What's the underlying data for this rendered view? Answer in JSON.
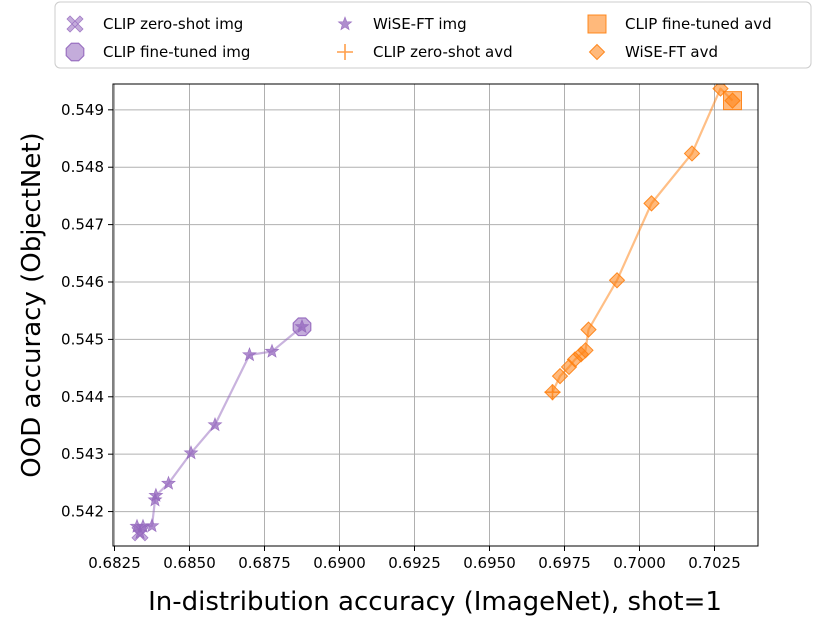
{
  "chart_data": {
    "type": "scatter",
    "title": "",
    "xlabel": "In-distribution accuracy (ImageNet), shot=1",
    "ylabel": "OOD accuracy (ObjectNet)",
    "xlim": [
      0.68245,
      0.70395
    ],
    "ylim": [
      0.5414,
      0.54945
    ],
    "xticks": [
      0.6825,
      0.685,
      0.6875,
      0.69,
      0.6925,
      0.695,
      0.6975,
      0.7,
      0.7025
    ],
    "xtick_labels": [
      "0.6825",
      "0.6850",
      "0.6875",
      "0.6900",
      "0.6925",
      "0.6950",
      "0.6975",
      "0.7000",
      "0.7025"
    ],
    "yticks": [
      0.542,
      0.543,
      0.544,
      0.545,
      0.546,
      0.547,
      0.548,
      0.549
    ],
    "ytick_labels": [
      "0.542",
      "0.543",
      "0.544",
      "0.545",
      "0.546",
      "0.547",
      "0.548",
      "0.549"
    ],
    "grid": true,
    "legend_position": "top",
    "colors": {
      "img": "#9467bd",
      "avd": "#ff7f0e"
    },
    "series": [
      {
        "name": "CLIP zero-shot img",
        "marker": "x-thick",
        "color": "#9467bd",
        "line": false,
        "points": [
          [
            0.68335,
            0.54163
          ]
        ]
      },
      {
        "name": "CLIP fine-tuned img",
        "marker": "octagon",
        "color": "#9467bd",
        "line": false,
        "points": [
          [
            0.68875,
            0.54522
          ]
        ]
      },
      {
        "name": "WiSE-FT img",
        "marker": "star",
        "color": "#9467bd",
        "line": true,
        "points": [
          [
            0.68335,
            0.54163
          ],
          [
            0.68325,
            0.54174
          ],
          [
            0.68345,
            0.54174
          ],
          [
            0.68375,
            0.54175
          ],
          [
            0.68385,
            0.5422
          ],
          [
            0.68388,
            0.54228
          ],
          [
            0.6843,
            0.54249
          ],
          [
            0.68505,
            0.54302
          ],
          [
            0.68585,
            0.54351
          ],
          [
            0.687,
            0.54473
          ],
          [
            0.68775,
            0.54479
          ],
          [
            0.68875,
            0.54522
          ]
        ]
      },
      {
        "name": "CLIP zero-shot avd",
        "marker": "plus",
        "color": "#ff7f0e",
        "line": false,
        "points": [
          [
            0.6971,
            0.54408
          ]
        ]
      },
      {
        "name": "CLIP fine-tuned avd",
        "marker": "square",
        "color": "#ff7f0e",
        "line": false,
        "points": [
          [
            0.7031,
            0.54916
          ]
        ]
      },
      {
        "name": "WiSE-FT avd",
        "marker": "diamond",
        "color": "#ff7f0e",
        "line": true,
        "points": [
          [
            0.6971,
            0.54408
          ],
          [
            0.69735,
            0.54436
          ],
          [
            0.69765,
            0.54452
          ],
          [
            0.69785,
            0.54465
          ],
          [
            0.69805,
            0.54474
          ],
          [
            0.6982,
            0.54481
          ],
          [
            0.6983,
            0.54517
          ],
          [
            0.69925,
            0.54603
          ],
          [
            0.7004,
            0.54737
          ],
          [
            0.70175,
            0.54824
          ],
          [
            0.7027,
            0.54937
          ],
          [
            0.7031,
            0.54916
          ]
        ]
      }
    ]
  }
}
